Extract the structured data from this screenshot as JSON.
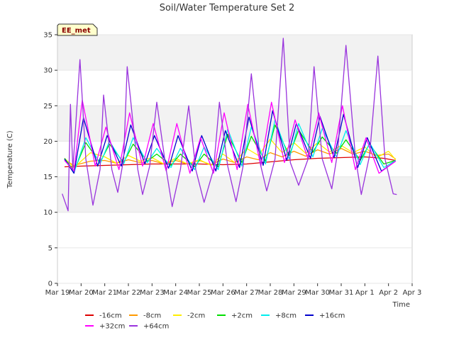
{
  "chart_data": {
    "type": "line",
    "title": "Soil/Water Temperature Set 2",
    "xlabel": "Time",
    "ylabel": "Temperature (C)",
    "badge": "EE_met",
    "ylim": [
      0,
      35
    ],
    "yticks": [
      0,
      5,
      10,
      15,
      20,
      25,
      30,
      35
    ],
    "xlim": [
      0,
      15
    ],
    "xticks": [
      {
        "x": 0,
        "label": "Mar 19"
      },
      {
        "x": 1,
        "label": "Mar 20"
      },
      {
        "x": 2,
        "label": "Mar 21"
      },
      {
        "x": 3,
        "label": "Mar 22"
      },
      {
        "x": 4,
        "label": "Mar 23"
      },
      {
        "x": 5,
        "label": "Mar 24"
      },
      {
        "x": 6,
        "label": "Mar 25"
      },
      {
        "x": 7,
        "label": "Mar 26"
      },
      {
        "x": 8,
        "label": "Mar 27"
      },
      {
        "x": 9,
        "label": "Mar 28"
      },
      {
        "x": 10,
        "label": "Mar 29"
      },
      {
        "x": 11,
        "label": "Mar 30"
      },
      {
        "x": 12,
        "label": "Mar 31"
      },
      {
        "x": 13,
        "label": "Apr 1"
      },
      {
        "x": 14,
        "label": "Apr 2"
      },
      {
        "x": 15,
        "label": "Apr 3"
      }
    ],
    "x_units": "days since Mar 19",
    "bands": [
      [
        10,
        15
      ],
      [
        20,
        25
      ],
      [
        30,
        35
      ]
    ],
    "series": [
      {
        "name": "-16cm",
        "color": "#dd0000",
        "x": [
          0.3,
          1,
          2,
          3,
          4,
          5,
          6,
          7,
          8,
          9,
          10,
          11,
          12,
          13,
          13.8,
          14.3
        ],
        "y": [
          16.4,
          16.5,
          16.6,
          16.7,
          16.8,
          16.8,
          16.8,
          16.7,
          16.8,
          17.1,
          17.4,
          17.6,
          17.7,
          17.8,
          17.6,
          17.3
        ]
      },
      {
        "name": "-8cm",
        "color": "#ff9900",
        "x": [
          0.3,
          0.7,
          1.4,
          2,
          2.5,
          3,
          3.5,
          4,
          4.5,
          5,
          5.5,
          6,
          6.5,
          7,
          7.5,
          8,
          8.5,
          9,
          9.5,
          10,
          10.5,
          11,
          11.5,
          12,
          12.5,
          13,
          13.5,
          14,
          14.3
        ],
        "y": [
          17.4,
          16.6,
          17.2,
          17.3,
          16.9,
          17.4,
          17.0,
          17.3,
          16.8,
          17.3,
          16.8,
          17.3,
          16.7,
          17.5,
          17.0,
          17.8,
          17.4,
          18.4,
          17.8,
          18.6,
          17.9,
          18.8,
          18.2,
          19.0,
          18.2,
          18.6,
          18.0,
          18.2,
          17.5
        ]
      },
      {
        "name": "-2cm",
        "color": "#ffee00",
        "x": [
          0.3,
          0.7,
          1.4,
          2,
          2.5,
          3,
          3.5,
          4,
          4.5,
          5,
          5.5,
          6,
          6.5,
          7,
          7.5,
          8,
          8.5,
          9,
          9.5,
          10,
          10.5,
          11,
          11.5,
          12,
          12.5,
          13,
          13.5,
          14,
          14.3
        ],
        "y": [
          17.6,
          16.3,
          18.4,
          17.8,
          16.9,
          18.0,
          17.2,
          17.7,
          16.8,
          17.6,
          16.8,
          17.4,
          16.6,
          18.2,
          17.0,
          19.0,
          18.0,
          20.3,
          18.4,
          19.8,
          18.3,
          19.8,
          18.5,
          19.4,
          18.4,
          19.2,
          17.7,
          18.6,
          17.4
        ]
      },
      {
        "name": "+2cm",
        "color": "#00dd00",
        "x": [
          0.3,
          0.7,
          1.2,
          1.8,
          2.2,
          2.8,
          3.2,
          3.8,
          4.2,
          4.8,
          5.2,
          5.8,
          6.2,
          6.8,
          7.2,
          7.8,
          8.2,
          8.8,
          9.2,
          9.8,
          10.2,
          10.8,
          11.2,
          11.8,
          12.2,
          12.8,
          13.2,
          13.8,
          14.3
        ],
        "y": [
          17.6,
          15.8,
          19.8,
          17.0,
          19.6,
          17.0,
          19.6,
          17.2,
          18.2,
          16.6,
          18.2,
          16.4,
          18.2,
          16.4,
          21.0,
          17.0,
          20.7,
          17.2,
          22.3,
          18.0,
          21.6,
          18.5,
          20.6,
          18.3,
          20.2,
          17.3,
          19.6,
          16.8,
          17.3
        ]
      },
      {
        "name": "+8cm",
        "color": "#00eeee",
        "x": [
          0.3,
          0.7,
          1.2,
          1.8,
          2.2,
          2.8,
          3.2,
          3.8,
          4.2,
          4.8,
          5.2,
          5.8,
          6.2,
          6.8,
          7.2,
          7.8,
          8.2,
          8.8,
          9.2,
          9.8,
          10.2,
          10.8,
          11.2,
          11.8,
          12.2,
          12.8,
          13.2,
          13.8,
          14.3
        ],
        "y": [
          17.5,
          15.6,
          20.5,
          16.8,
          20.0,
          16.8,
          20.5,
          17.0,
          19.0,
          16.3,
          19.0,
          16.0,
          19.2,
          16.0,
          21.7,
          16.5,
          22.0,
          16.8,
          23.0,
          17.5,
          22.5,
          17.8,
          21.8,
          17.8,
          21.5,
          16.7,
          19.8,
          16.3,
          17.3
        ]
      },
      {
        "name": "+16cm",
        "color": "#0000cc",
        "x": [
          0.3,
          0.7,
          1.1,
          1.7,
          2.1,
          2.7,
          3.1,
          3.7,
          4.1,
          4.7,
          5.1,
          5.7,
          6.1,
          6.7,
          7.1,
          7.7,
          8.1,
          8.7,
          9.1,
          9.7,
          10.1,
          10.7,
          11.1,
          11.7,
          12.1,
          12.7,
          13.1,
          13.7,
          14.3
        ],
        "y": [
          17.5,
          15.5,
          23.3,
          16.5,
          20.8,
          16.5,
          22.3,
          16.8,
          20.8,
          16.2,
          20.8,
          15.8,
          20.8,
          15.8,
          21.5,
          16.3,
          23.4,
          16.6,
          24.3,
          17.3,
          22.5,
          17.6,
          23.5,
          17.7,
          23.8,
          16.3,
          20.5,
          15.8,
          17.2
        ]
      },
      {
        "name": "+32cm",
        "color": "#ff00ff",
        "x": [
          0.3,
          0.7,
          1.05,
          1.6,
          2.05,
          2.6,
          3.05,
          3.6,
          4.05,
          4.6,
          5.05,
          5.6,
          6.05,
          6.6,
          7.05,
          7.6,
          8.05,
          8.6,
          9.05,
          9.6,
          10.05,
          10.6,
          11.05,
          11.6,
          12.05,
          12.6,
          13.05,
          13.6,
          14.3
        ],
        "y": [
          17.3,
          15.8,
          25.8,
          16.5,
          22.0,
          16.0,
          24.0,
          16.5,
          22.5,
          15.8,
          22.5,
          15.5,
          20.5,
          15.5,
          24.0,
          16.0,
          25.2,
          16.5,
          25.5,
          17.0,
          23.0,
          17.5,
          24.0,
          17.0,
          25.0,
          16.0,
          20.5,
          15.5,
          17.2
        ]
      },
      {
        "name": "+64cm",
        "color": "#9933dd",
        "x": [
          0.2,
          0.45,
          0.55,
          0.65,
          0.95,
          1.2,
          1.5,
          1.8,
          1.95,
          2.3,
          2.55,
          2.8,
          2.95,
          3.4,
          3.6,
          3.9,
          4.2,
          4.6,
          4.85,
          5.2,
          5.55,
          5.85,
          6.2,
          6.6,
          6.85,
          7.2,
          7.55,
          7.85,
          8.2,
          8.6,
          8.85,
          9.2,
          9.55,
          9.85,
          10.2,
          10.6,
          10.85,
          11.2,
          11.6,
          11.85,
          12.2,
          12.6,
          12.85,
          13.2,
          13.55,
          13.85,
          14.2,
          14.35
        ],
        "y": [
          12.6,
          10.2,
          25.2,
          16.0,
          31.5,
          17.5,
          11.0,
          16.0,
          26.5,
          16.0,
          12.8,
          17.5,
          30.5,
          16.0,
          12.5,
          16.5,
          25.5,
          16.0,
          10.8,
          16.0,
          25.0,
          16.0,
          11.4,
          16.0,
          25.5,
          16.5,
          11.5,
          16.5,
          29.5,
          16.5,
          13.0,
          17.5,
          34.5,
          17.0,
          13.8,
          17.5,
          30.5,
          17.5,
          13.3,
          18.5,
          33.5,
          17.8,
          12.5,
          18.0,
          32.0,
          17.5,
          12.6,
          12.5
        ]
      }
    ]
  }
}
